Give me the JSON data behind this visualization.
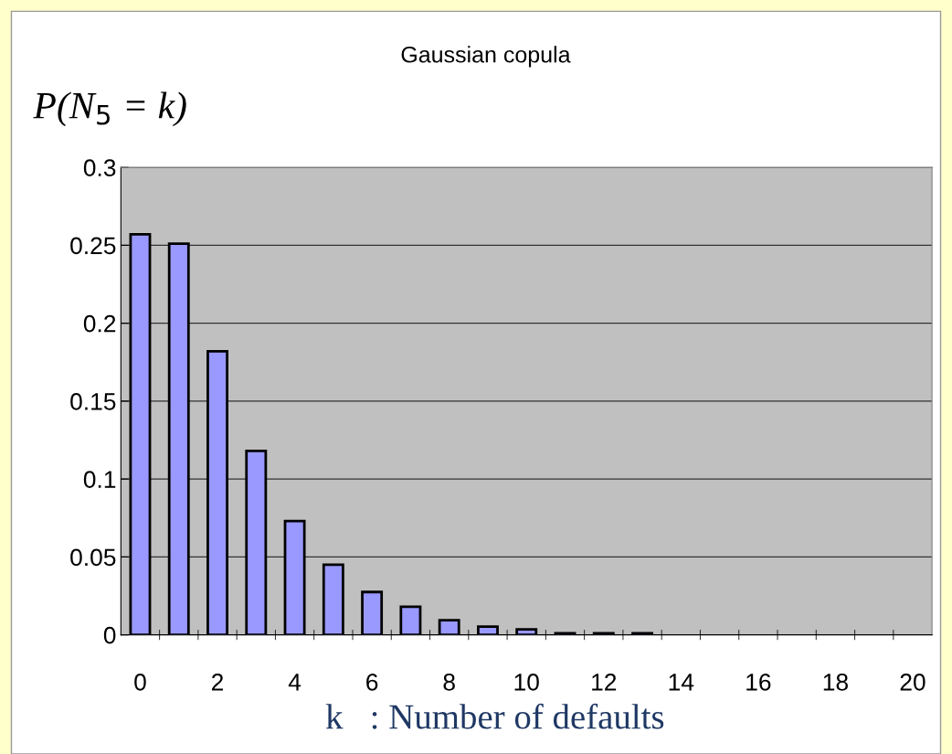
{
  "chart_data": {
    "type": "bar",
    "title": "Gaussian copula",
    "ylabel": "P(N$_{5}$ = k)",
    "xlabel": "k   : Number of defaults",
    "categories": [
      "0",
      null,
      "2",
      null,
      "4",
      null,
      "6",
      null,
      "8",
      null,
      "10",
      null,
      "12",
      null,
      "14",
      null,
      "16",
      null,
      "18",
      null,
      "20"
    ],
    "values": [
      0.257,
      0.251,
      0.182,
      0.118,
      0.073,
      0.045,
      0.0275,
      0.018,
      0.0094,
      0.0053,
      0.0035,
      0.001,
      0.001,
      0.001,
      0,
      0,
      0,
      0,
      0,
      0,
      0
    ],
    "color": "#9999ff",
    "ylim": [
      0,
      0.3
    ],
    "yticks": [
      0,
      0.05,
      0.1,
      0.15,
      0.2,
      0.25,
      0.3
    ],
    "grid": "y"
  }
}
